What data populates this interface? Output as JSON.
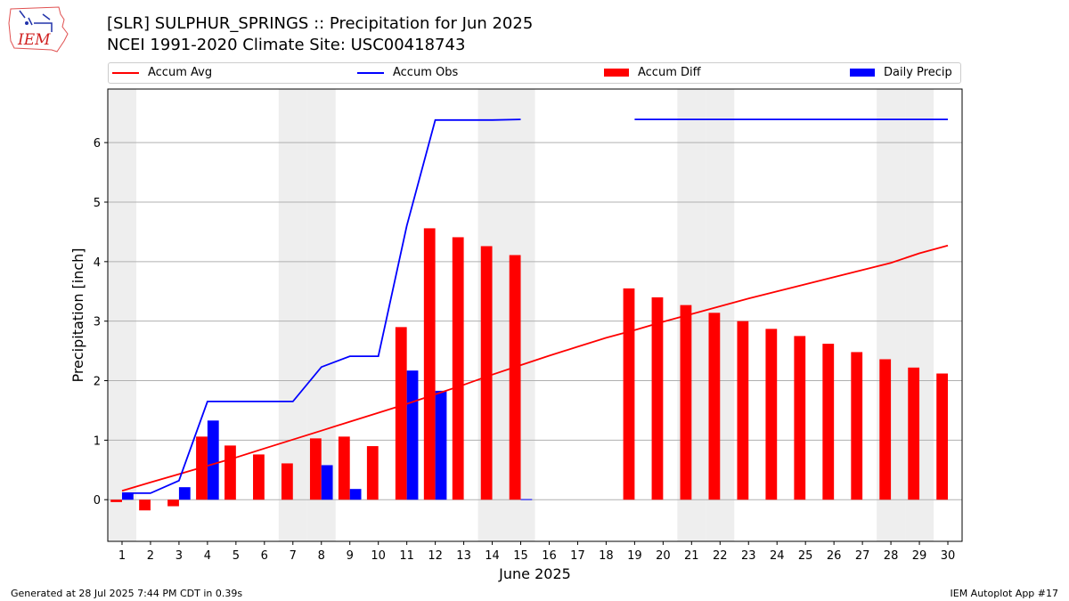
{
  "header": {
    "logo_text": "IEM",
    "title_line1": "[SLR] SULPHUR_SPRINGS :: Precipitation for Jun 2025",
    "title_line2": "NCEI 1991-2020 Climate Site: USC00418743"
  },
  "footer": {
    "left": "Generated at 28 Jul 2025 7:44 PM CDT in 0.39s",
    "right": "IEM Autoplot App #17"
  },
  "colors": {
    "accum_avg": "#ff0000",
    "accum_obs": "#0000ff",
    "accum_diff": "#ff0000",
    "daily_precip": "#0000ff",
    "weekend_shade": "#eeeeee",
    "grid": "#b0b0b0"
  },
  "chart_data": {
    "type": "bar",
    "xlabel": "June 2025",
    "ylabel": "Precipitation [inch]",
    "xlim": [
      0.5,
      30.5
    ],
    "ylim": [
      -0.7,
      6.9
    ],
    "yticks": [
      0,
      1,
      2,
      3,
      4,
      5,
      6
    ],
    "grid": "horizontal",
    "legend_position": "top",
    "days": [
      1,
      2,
      3,
      4,
      5,
      6,
      7,
      8,
      9,
      10,
      11,
      12,
      13,
      14,
      15,
      16,
      17,
      18,
      19,
      20,
      21,
      22,
      23,
      24,
      25,
      26,
      27,
      28,
      29,
      30
    ],
    "weekend_days": [
      1,
      7,
      8,
      14,
      15,
      21,
      22,
      28,
      29
    ],
    "series": [
      {
        "name": "Accum Avg",
        "kind": "line",
        "values": [
          0.15,
          0.29,
          0.43,
          0.57,
          0.71,
          0.86,
          1.01,
          1.16,
          1.31,
          1.46,
          1.61,
          1.77,
          1.93,
          2.1,
          2.26,
          2.42,
          2.57,
          2.72,
          2.85,
          2.99,
          3.12,
          3.25,
          3.38,
          3.5,
          3.62,
          3.74,
          3.86,
          3.98,
          4.14,
          4.27
        ]
      },
      {
        "name": "Accum Obs",
        "kind": "line",
        "values": [
          0.11,
          0.11,
          0.32,
          1.65,
          1.65,
          1.65,
          1.65,
          2.23,
          2.41,
          2.41,
          4.6,
          6.38,
          6.38,
          6.38,
          6.39,
          null,
          null,
          null,
          6.39,
          6.39,
          6.39,
          6.39,
          6.39,
          6.39,
          6.39,
          6.39,
          6.39,
          6.39,
          6.39,
          6.39
        ]
      },
      {
        "name": "Accum Diff",
        "kind": "bar",
        "values": [
          -0.04,
          -0.18,
          -0.11,
          1.06,
          0.91,
          0.76,
          0.61,
          1.03,
          1.06,
          0.9,
          2.9,
          4.56,
          4.41,
          4.26,
          4.11,
          null,
          null,
          null,
          3.55,
          3.4,
          3.27,
          3.14,
          3.0,
          2.87,
          2.75,
          2.62,
          2.48,
          2.36,
          2.22,
          2.12
        ]
      },
      {
        "name": "Daily Precip",
        "kind": "bar",
        "values": [
          0.11,
          0,
          0.21,
          1.33,
          0,
          0,
          0,
          0.58,
          0.18,
          0,
          2.17,
          1.83,
          0,
          0,
          0.01,
          null,
          null,
          null,
          0,
          0,
          0,
          0,
          0,
          0,
          0,
          0,
          0,
          0,
          0,
          0
        ]
      }
    ]
  }
}
